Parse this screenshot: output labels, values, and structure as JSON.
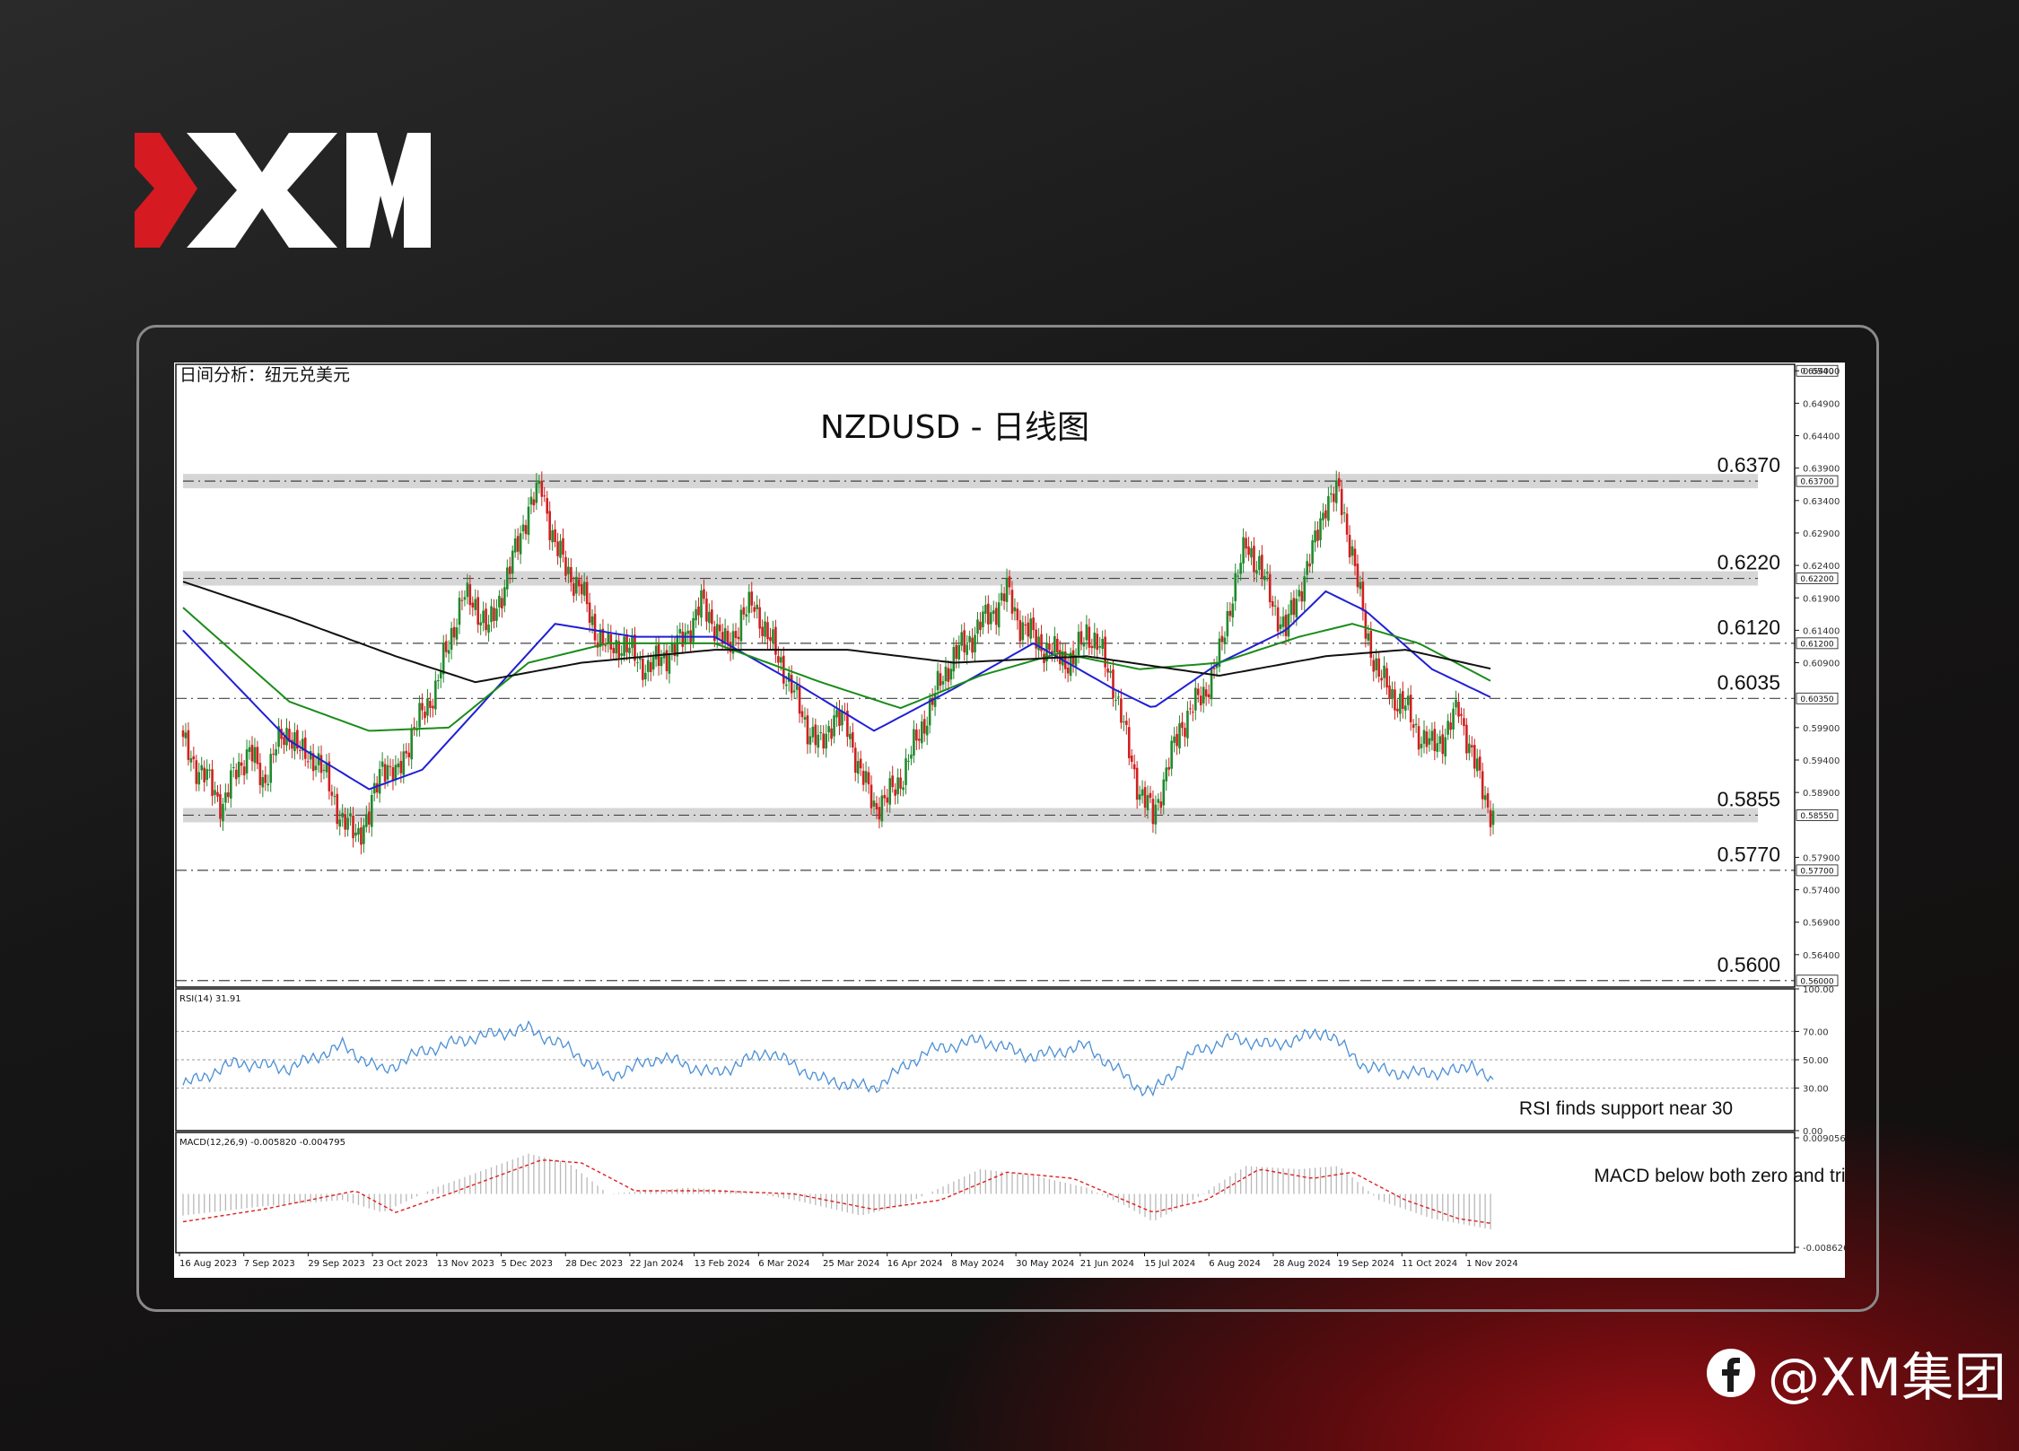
{
  "brand": {
    "logo_text": "XM",
    "social_handle": "@XM集团",
    "accent": "#d51a21"
  },
  "chart": {
    "window_title": "日间分析：纽元兑美元",
    "title": "NZDUSD - 日线图",
    "rsi_label": "RSI(14) 31.91",
    "macd_label": "MACD(12,26,9) -0.005820 -0.004795",
    "rsi_annotation": "RSI finds support near 30",
    "macd_annotation": "MACD below both zero and trigger lines"
  },
  "chart_data": {
    "type": "line",
    "symbol": "NZDUSD",
    "timeframe": "Daily",
    "x_dates": [
      "16 Aug 2023",
      "7 Sep 2023",
      "29 Sep 2023",
      "23 Oct 2023",
      "13 Nov 2023",
      "5 Dec 2023",
      "28 Dec 2023",
      "22 Jan 2024",
      "13 Feb 2024",
      "6 Mar 2024",
      "25 Mar 2024",
      "16 Apr 2024",
      "8 May 2024",
      "30 May 2024",
      "21 Jun 2024",
      "15 Jul 2024",
      "6 Aug 2024",
      "28 Aug 2024",
      "19 Sep 2024",
      "11 Oct 2024",
      "1 Nov 2024"
    ],
    "ylim": [
      0.559,
      0.655
    ],
    "y_ticks": [
      "0.65400",
      "0.64900",
      "0.64400",
      "0.63900",
      "0.63400",
      "0.62900",
      "0.62400",
      "0.61900",
      "0.61400",
      "0.60900",
      "0.59900",
      "0.59400",
      "0.58900",
      "0.57900",
      "0.57400",
      "0.56900",
      "0.56400"
    ],
    "levels": [
      {
        "value": 0.654,
        "label": "0.6540",
        "tag": "0.65400",
        "style": "none"
      },
      {
        "value": 0.637,
        "label": "0.6370",
        "tag": "0.63700",
        "style": "zone"
      },
      {
        "value": 0.622,
        "label": "0.6220",
        "tag": "0.62200",
        "style": "zone"
      },
      {
        "value": 0.612,
        "label": "0.6120",
        "tag": "0.61200",
        "style": "dashdot"
      },
      {
        "value": 0.6035,
        "label": "0.6035",
        "tag": "0.60350",
        "style": "dashdot"
      },
      {
        "value": 0.5855,
        "label": "0.5855",
        "tag": "0.58550",
        "style": "zone"
      },
      {
        "value": 0.577,
        "label": "0.5770",
        "tag": "0.57700",
        "style": "dashdot"
      },
      {
        "value": 0.56,
        "label": "0.5600",
        "tag": "0.56000",
        "style": "dashdot"
      }
    ],
    "close_anchors": [
      [
        0,
        0.5965
      ],
      [
        5,
        0.593
      ],
      [
        10,
        0.5905
      ],
      [
        15,
        0.587
      ],
      [
        20,
        0.5925
      ],
      [
        25,
        0.5955
      ],
      [
        30,
        0.5905
      ],
      [
        35,
        0.596
      ],
      [
        40,
        0.5985
      ],
      [
        45,
        0.5945
      ],
      [
        50,
        0.5945
      ],
      [
        55,
        0.59
      ],
      [
        60,
        0.5845
      ],
      [
        65,
        0.5828
      ],
      [
        70,
        0.585
      ],
      [
        75,
        0.594
      ],
      [
        80,
        0.591
      ],
      [
        85,
        0.597
      ],
      [
        90,
        0.601
      ],
      [
        95,
        0.605
      ],
      [
        100,
        0.612
      ],
      [
        105,
        0.619
      ],
      [
        110,
        0.618
      ],
      [
        115,
        0.614
      ],
      [
        120,
        0.62
      ],
      [
        125,
        0.626
      ],
      [
        130,
        0.633
      ],
      [
        135,
        0.636
      ],
      [
        140,
        0.627
      ],
      [
        145,
        0.623
      ],
      [
        150,
        0.62
      ],
      [
        155,
        0.614
      ],
      [
        160,
        0.611
      ],
      [
        165,
        0.612
      ],
      [
        170,
        0.61
      ],
      [
        175,
        0.608
      ],
      [
        180,
        0.61
      ],
      [
        185,
        0.611
      ],
      [
        190,
        0.614
      ],
      [
        195,
        0.618
      ],
      [
        200,
        0.615
      ],
      [
        205,
        0.611
      ],
      [
        210,
        0.616
      ],
      [
        215,
        0.618
      ],
      [
        220,
        0.613
      ],
      [
        225,
        0.609
      ],
      [
        230,
        0.604
      ],
      [
        235,
        0.599
      ],
      [
        240,
        0.596
      ],
      [
        245,
        0.601
      ],
      [
        250,
        0.599
      ],
      [
        255,
        0.592
      ],
      [
        260,
        0.587
      ],
      [
        265,
        0.588
      ],
      [
        270,
        0.591
      ],
      [
        275,
        0.596
      ],
      [
        280,
        0.601
      ],
      [
        285,
        0.606
      ],
      [
        290,
        0.61
      ],
      [
        295,
        0.612
      ],
      [
        300,
        0.615
      ],
      [
        305,
        0.617
      ],
      [
        310,
        0.62
      ],
      [
        315,
        0.615
      ],
      [
        320,
        0.613
      ],
      [
        325,
        0.611
      ],
      [
        330,
        0.61
      ],
      [
        335,
        0.609
      ],
      [
        340,
        0.614
      ],
      [
        345,
        0.611
      ],
      [
        350,
        0.606
      ],
      [
        355,
        0.597
      ],
      [
        360,
        0.589
      ],
      [
        365,
        0.5855
      ],
      [
        370,
        0.592
      ],
      [
        375,
        0.599
      ],
      [
        380,
        0.602
      ],
      [
        385,
        0.605
      ],
      [
        390,
        0.61
      ],
      [
        395,
        0.62
      ],
      [
        400,
        0.627
      ],
      [
        405,
        0.624
      ],
      [
        410,
        0.618
      ],
      [
        415,
        0.614
      ],
      [
        420,
        0.62
      ],
      [
        425,
        0.626
      ],
      [
        430,
        0.634
      ],
      [
        435,
        0.635
      ],
      [
        440,
        0.626
      ],
      [
        445,
        0.614
      ],
      [
        450,
        0.607
      ],
      [
        455,
        0.604
      ],
      [
        460,
        0.602
      ],
      [
        465,
        0.598
      ],
      [
        470,
        0.596
      ],
      [
        475,
        0.598
      ],
      [
        480,
        0.602
      ],
      [
        485,
        0.595
      ],
      [
        490,
        0.588
      ],
      [
        493,
        0.5855
      ]
    ],
    "moving_averages": [
      {
        "color": "#1f1fd6",
        "points": [
          [
            0,
            0.614
          ],
          [
            40,
            0.597
          ],
          [
            70,
            0.5895
          ],
          [
            90,
            0.5925
          ],
          [
            120,
            0.606
          ],
          [
            140,
            0.615
          ],
          [
            170,
            0.613
          ],
          [
            200,
            0.613
          ],
          [
            230,
            0.606
          ],
          [
            260,
            0.5985
          ],
          [
            290,
            0.605
          ],
          [
            320,
            0.612
          ],
          [
            350,
            0.605
          ],
          [
            365,
            0.602
          ],
          [
            390,
            0.609
          ],
          [
            415,
            0.614
          ],
          [
            430,
            0.62
          ],
          [
            445,
            0.617
          ],
          [
            470,
            0.608
          ],
          [
            493,
            0.6035
          ]
        ]
      },
      {
        "color": "#1a8c1a",
        "points": [
          [
            0,
            0.6175
          ],
          [
            40,
            0.603
          ],
          [
            70,
            0.5985
          ],
          [
            100,
            0.599
          ],
          [
            130,
            0.609
          ],
          [
            160,
            0.612
          ],
          [
            200,
            0.612
          ],
          [
            240,
            0.606
          ],
          [
            270,
            0.602
          ],
          [
            300,
            0.607
          ],
          [
            330,
            0.6105
          ],
          [
            360,
            0.608
          ],
          [
            390,
            0.609
          ],
          [
            420,
            0.613
          ],
          [
            440,
            0.615
          ],
          [
            465,
            0.612
          ],
          [
            493,
            0.606
          ]
        ]
      },
      {
        "color": "#111111",
        "points": [
          [
            0,
            0.6215
          ],
          [
            40,
            0.616
          ],
          [
            80,
            0.61
          ],
          [
            110,
            0.606
          ],
          [
            150,
            0.609
          ],
          [
            200,
            0.611
          ],
          [
            250,
            0.611
          ],
          [
            290,
            0.609
          ],
          [
            340,
            0.61
          ],
          [
            390,
            0.607
          ],
          [
            430,
            0.61
          ],
          [
            460,
            0.611
          ],
          [
            493,
            0.608
          ]
        ]
      }
    ],
    "rsi": {
      "ylim": [
        0,
        100
      ],
      "ticks": [
        "100.00",
        "70.00",
        "50.00",
        "30.00",
        "0.00"
      ],
      "levels": [
        70,
        50,
        30
      ],
      "color": "#4a8fd6",
      "anchors": [
        [
          0,
          32
        ],
        [
          20,
          48
        ],
        [
          40,
          44
        ],
        [
          60,
          60
        ],
        [
          75,
          42
        ],
        [
          90,
          56
        ],
        [
          110,
          66
        ],
        [
          130,
          72
        ],
        [
          145,
          58
        ],
        [
          160,
          38
        ],
        [
          180,
          52
        ],
        [
          200,
          40
        ],
        [
          220,
          56
        ],
        [
          240,
          36
        ],
        [
          260,
          30
        ],
        [
          280,
          56
        ],
        [
          300,
          64
        ],
        [
          320,
          52
        ],
        [
          340,
          60
        ],
        [
          360,
          30
        ],
        [
          365,
          27
        ],
        [
          380,
          55
        ],
        [
          395,
          65
        ],
        [
          410,
          60
        ],
        [
          430,
          70
        ],
        [
          445,
          45
        ],
        [
          460,
          40
        ],
        [
          480,
          42
        ],
        [
          485,
          48
        ],
        [
          493,
          32
        ]
      ]
    },
    "macd": {
      "ylim": [
        -0.008626,
        0.009056
      ],
      "top_tag": "0.009056",
      "bottom_tag": "-0.008626",
      "hist_color": "#b8b8b8",
      "signal_color": "#e02020",
      "hist_anchors": [
        [
          0,
          -0.0035
        ],
        [
          30,
          -0.002
        ],
        [
          60,
          -0.001
        ],
        [
          75,
          -0.003
        ],
        [
          95,
          0.001
        ],
        [
          130,
          0.0065
        ],
        [
          145,
          0.005
        ],
        [
          160,
          0.0
        ],
        [
          190,
          0.001
        ],
        [
          210,
          0.0005
        ],
        [
          230,
          -0.001
        ],
        [
          255,
          -0.0035
        ],
        [
          270,
          -0.002
        ],
        [
          300,
          0.004
        ],
        [
          320,
          0.003
        ],
        [
          340,
          0.001
        ],
        [
          355,
          -0.002
        ],
        [
          365,
          -0.0045
        ],
        [
          380,
          -0.001
        ],
        [
          400,
          0.0045
        ],
        [
          420,
          0.004
        ],
        [
          435,
          0.0045
        ],
        [
          450,
          -0.001
        ],
        [
          470,
          -0.004
        ],
        [
          493,
          -0.0058
        ]
      ],
      "signal_anchors": [
        [
          0,
          -0.0045
        ],
        [
          30,
          -0.0025
        ],
        [
          65,
          0.0005
        ],
        [
          80,
          -0.003
        ],
        [
          100,
          0.0
        ],
        [
          135,
          0.0055
        ],
        [
          150,
          0.005
        ],
        [
          170,
          0.0005
        ],
        [
          200,
          0.0005
        ],
        [
          230,
          0.0
        ],
        [
          260,
          -0.0025
        ],
        [
          285,
          -0.001
        ],
        [
          310,
          0.0035
        ],
        [
          335,
          0.0025
        ],
        [
          365,
          -0.003
        ],
        [
          385,
          -0.001
        ],
        [
          405,
          0.004
        ],
        [
          425,
          0.0025
        ],
        [
          440,
          0.0035
        ],
        [
          460,
          -0.001
        ],
        [
          480,
          -0.004
        ],
        [
          493,
          -0.0048
        ]
      ]
    }
  }
}
